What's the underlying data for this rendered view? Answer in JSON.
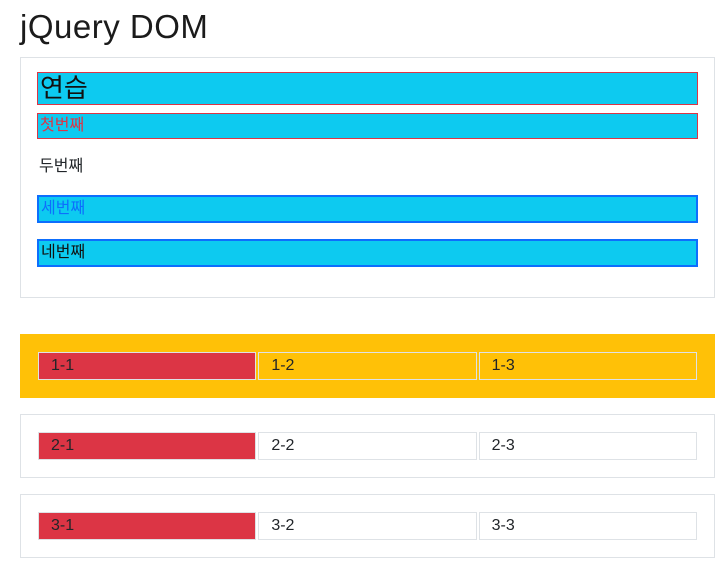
{
  "page": {
    "title": "jQuery DOM"
  },
  "practice_panel": {
    "heading": "연습",
    "items": [
      {
        "label": "첫번째",
        "style": "cyan-bg red-border red-text"
      },
      {
        "label": "두번째",
        "style": "plain"
      },
      {
        "label": "세번째",
        "style": "cyan-bg blue-border blue-text"
      },
      {
        "label": "네번째",
        "style": "cyan-bg blue-border dark-text"
      }
    ]
  },
  "tables": [
    {
      "background": "#ffc107",
      "cells": [
        "1-1",
        "1-2",
        "1-3"
      ],
      "first_cell_bg": "#dc3545"
    },
    {
      "background": "#ffffff",
      "cells": [
        "2-1",
        "2-2",
        "2-3"
      ],
      "first_cell_bg": "#dc3545"
    },
    {
      "background": "#ffffff",
      "cells": [
        "3-1",
        "3-2",
        "3-3"
      ],
      "first_cell_bg": "#dc3545"
    }
  ],
  "colors": {
    "accent_cyan": "#0dcaf0",
    "accent_red": "#dc3545",
    "accent_blue": "#0d6efd",
    "accent_orange": "#ffc107",
    "border_gray": "#dee2e6",
    "text_dark": "#212529"
  }
}
